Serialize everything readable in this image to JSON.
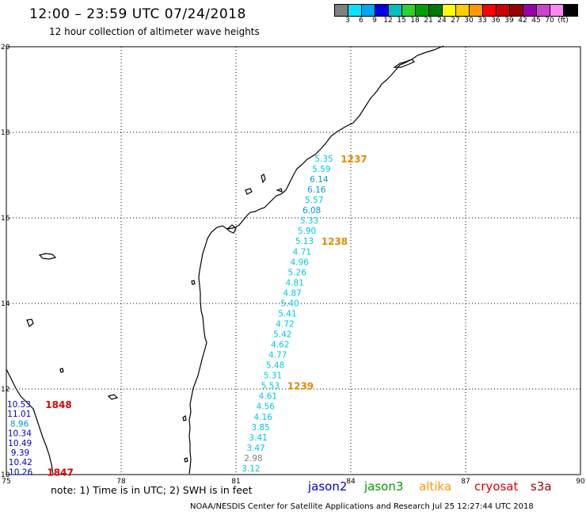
{
  "header": {
    "title": "12:00 – 23:59 UTC 07/24/2018",
    "subtitle": "12 hour collection of altimeter wave heights"
  },
  "colorbar": {
    "colors": [
      "#808080",
      "#00e5ff",
      "#00a8f0",
      "#0000e0",
      "#00c0c0",
      "#30d030",
      "#00a000",
      "#007a00",
      "#ffff00",
      "#ffcc00",
      "#ff9900",
      "#ff0000",
      "#cc0000",
      "#990000",
      "#9900aa",
      "#cc44cc",
      "#ff88ee",
      "#000000"
    ],
    "labels": [
      "3",
      "6",
      "9",
      "12",
      "15",
      "18",
      "21",
      "24",
      "27",
      "30",
      "33",
      "36",
      "39",
      "42",
      "45",
      "70",
      "(ft)"
    ]
  },
  "axes": {
    "x_labels": [
      "75",
      "78",
      "81",
      "84",
      "87",
      "90"
    ],
    "y_labels": [
      "20",
      "18",
      "16",
      "14",
      "12",
      "10"
    ],
    "grid": "dotted"
  },
  "tracks": [
    {
      "satellite": "altika",
      "time": "1237",
      "time_color": "#e08a00",
      "points": [
        {
          "v": "5.35",
          "c": "#00c8e0"
        },
        {
          "v": "5.59",
          "c": "#00c8e0"
        },
        {
          "v": "6.14",
          "c": "#0099dd"
        },
        {
          "v": "6.16",
          "c": "#0099dd"
        },
        {
          "v": "5.57",
          "c": "#00c8e0"
        },
        {
          "v": "6.08",
          "c": "#0099dd"
        },
        {
          "v": "5.33",
          "c": "#00c8e0"
        },
        {
          "v": "5.90",
          "c": "#00c8e0"
        },
        {
          "v": "5.13",
          "c": "#00c8e0"
        },
        {
          "v": "4.71",
          "c": "#00c8e0"
        },
        {
          "v": "4.96",
          "c": "#00c8e0"
        },
        {
          "v": "5.26",
          "c": "#00c8e0"
        },
        {
          "v": "4.81",
          "c": "#00c8e0"
        },
        {
          "v": "4.87",
          "c": "#00c8e0"
        },
        {
          "v": "5.40",
          "c": "#00c8e0"
        },
        {
          "v": "5.41",
          "c": "#00c8e0"
        },
        {
          "v": "4.72",
          "c": "#00c8e0"
        },
        {
          "v": "5.42",
          "c": "#00c8e0"
        },
        {
          "v": "4.62",
          "c": "#00c8e0"
        },
        {
          "v": "4.77",
          "c": "#00c8e0"
        },
        {
          "v": "5.48",
          "c": "#00c8e0"
        },
        {
          "v": "5.31",
          "c": "#00c8e0"
        },
        {
          "v": "5.53",
          "c": "#00c8e0"
        },
        {
          "v": "4.61",
          "c": "#00c8e0"
        },
        {
          "v": "4.56",
          "c": "#00c8e0"
        },
        {
          "v": "4.16",
          "c": "#00c8e0"
        },
        {
          "v": "3.85",
          "c": "#00c8e0"
        },
        {
          "v": "3.41",
          "c": "#00c8e0"
        },
        {
          "v": "3.47",
          "c": "#00c8e0"
        },
        {
          "v": "2.98",
          "c": "#808080"
        },
        {
          "v": "3.12",
          "c": "#00c8e0"
        }
      ],
      "time_labels": [
        {
          "text": "1237",
          "after_index": 0
        },
        {
          "text": "1238",
          "after_index": 8
        },
        {
          "text": "1239",
          "after_index": 22
        }
      ]
    },
    {
      "satellite": "cryosat",
      "time_color": "#dd0000",
      "points": [
        {
          "v": "10.53",
          "c": "#0000cc"
        },
        {
          "v": "11.01",
          "c": "#0000cc"
        },
        {
          "v": "8.96",
          "c": "#0099dd"
        },
        {
          "v": "10.34",
          "c": "#0000cc"
        },
        {
          "v": "10.49",
          "c": "#0000cc"
        },
        {
          "v": "9.39",
          "c": "#0000cc"
        },
        {
          "v": "10.42",
          "c": "#0000cc"
        },
        {
          "v": "10.26",
          "c": "#0000cc"
        }
      ],
      "time_labels": [
        {
          "text": "1848",
          "after_index": 0
        },
        {
          "text": "1847",
          "after_index": 7
        }
      ]
    }
  ],
  "footer": {
    "note": "note:  1) Time is in UTC;  2) SWH is in feet",
    "satellites": [
      {
        "name": "jason2",
        "color": "#0000dd"
      },
      {
        "name": "jason3",
        "color": "#009900"
      },
      {
        "name": "altika",
        "color": "#ff9900"
      },
      {
        "name": "cryosat",
        "color": "#dd0000"
      },
      {
        "name": "s3a",
        "color": "#990000"
      }
    ],
    "credit": "NOAA/NESDIS Center for Satellite Applications and Research     Jul 25 12:27:44 UTC 2018"
  }
}
